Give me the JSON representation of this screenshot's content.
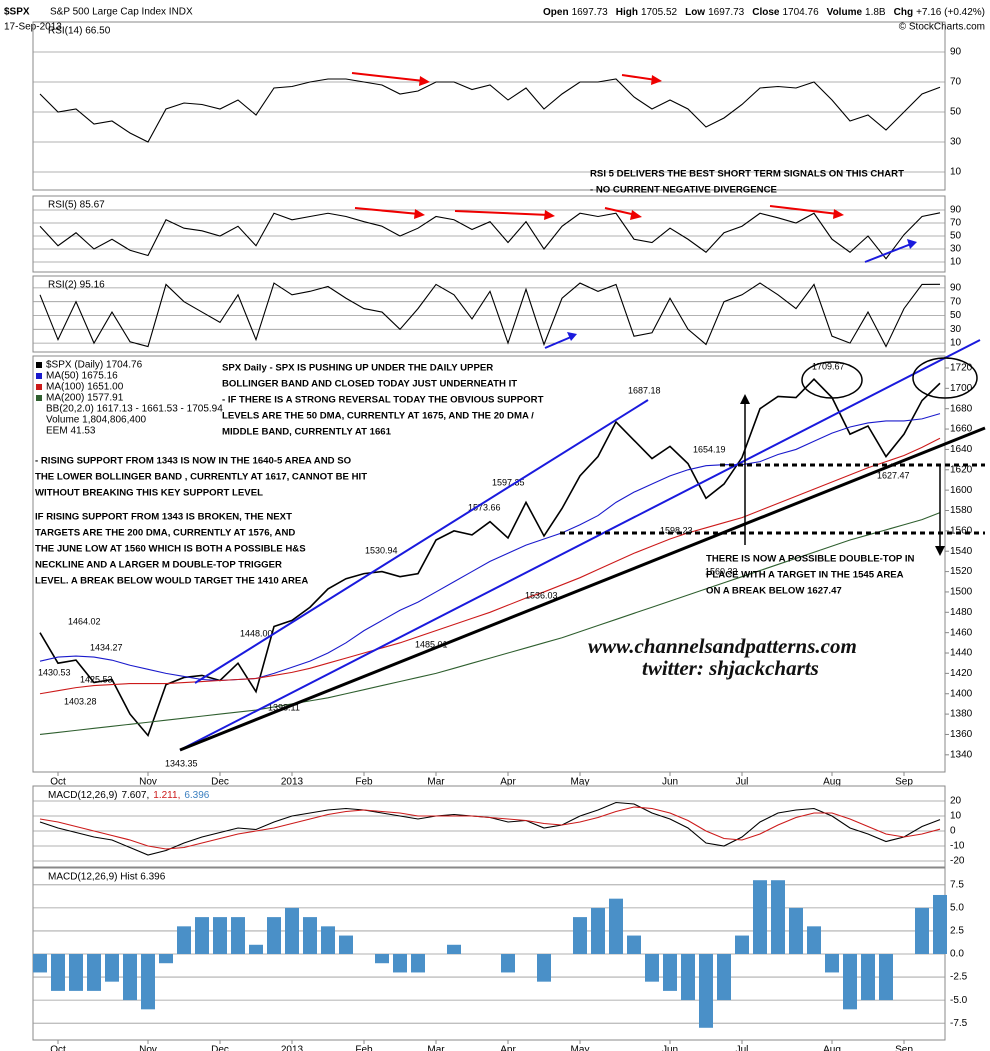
{
  "header": {
    "symbol": "$SPX",
    "name": "S&P 500 Large Cap Index INDX",
    "date": "17-Sep-2013",
    "quote": [
      {
        "label": "Open",
        "value": "1697.73"
      },
      {
        "label": "High",
        "value": "1705.52"
      },
      {
        "label": "Low",
        "value": "1697.73"
      },
      {
        "label": "Close",
        "value": "1704.76"
      },
      {
        "label": "Volume",
        "value": "1.8B"
      },
      {
        "label": "Chg",
        "value": "+7.16 (+0.42%)"
      }
    ],
    "credit": "© StockCharts.com"
  },
  "notes": [
    [
      "RSI 5 DELIVERS THE BEST SHORT TERM SIGNALS ON THIS CHART",
      "- NO CURRENT NEGATIVE DIVERGENCE"
    ],
    [
      "SPX Daily - SPX IS PUSHING UP UNDER THE DAILY UPPER",
      "BOLLINGER BAND AND CLOSED TODAY JUST UNDERNEATH IT",
      "- IF THERE IS A STRONG REVERSAL TODAY THE OBVIOUS SUPPORT",
      "LEVELS ARE THE 50 DMA, CURRENTLY AT 1675, AND THE 20 DMA /",
      "MIDDLE BAND, CURRENTLY AT 1661"
    ],
    [
      "- RISING SUPPORT FROM 1343 IS NOW IN THE 1640-5 AREA AND SO",
      "THE LOWER BOLLINGER BAND , CURRENTLY AT 1617, CANNOT BE HIT",
      "WITHOUT BREAKING THIS KEY SUPPORT LEVEL"
    ],
    [
      "IF RISING SUPPORT FROM 1343 IS BROKEN, THE NEXT",
      "TARGETS ARE THE 200 DMA, CURRENTLY AT 1576, AND",
      "THE JUNE LOW AT 1560 WHICH IS BOTH A POSSIBLE H&S",
      "NECKLINE AND A LARGER M DOUBLE-TOP TRIGGER",
      "LEVEL. A BREAK BELOW WOULD TARGET THE 1410 AREA"
    ],
    [
      "THERE IS NOW A POSSIBLE DOUBLE-TOP IN",
      "PLACE WITH A TARGET IN THE 1545 AREA",
      "ON A BREAK BELOW 1627.47"
    ]
  ],
  "watermark": [
    "www.channelsandpatterns.com",
    "twitter: shjackcharts"
  ],
  "chart_data": [
    {
      "type": "line",
      "title": "RSI(14) 66.50",
      "ylim": [
        0,
        100
      ],
      "yticks": [
        10,
        30,
        50,
        70,
        90
      ],
      "grid": true,
      "series": [
        {
          "name": "RSI(14)",
          "color": "#000000",
          "values": [
            62,
            50,
            52,
            42,
            44,
            36,
            30,
            52,
            56,
            55,
            52,
            58,
            48,
            66,
            67,
            70,
            72,
            72,
            70,
            68,
            62,
            64,
            70,
            70,
            65,
            68,
            58,
            66,
            52,
            62,
            70,
            70,
            72,
            60,
            52,
            58,
            52,
            40,
            46,
            55,
            66,
            67,
            66,
            70,
            58,
            44,
            48,
            38,
            50,
            62,
            66.5
          ]
        }
      ]
    },
    {
      "type": "line",
      "title": "RSI(5) 85.67",
      "ylim": [
        0,
        100
      ],
      "yticks": [
        10,
        30,
        50,
        70,
        90
      ],
      "grid": true,
      "series": [
        {
          "name": "RSI(5)",
          "color": "#000000",
          "values": [
            65,
            35,
            55,
            30,
            45,
            28,
            20,
            75,
            62,
            58,
            50,
            65,
            35,
            85,
            75,
            80,
            85,
            80,
            72,
            65,
            50,
            62,
            80,
            75,
            60,
            72,
            40,
            72,
            30,
            65,
            85,
            80,
            85,
            45,
            40,
            62,
            45,
            25,
            55,
            65,
            85,
            78,
            70,
            85,
            45,
            25,
            50,
            15,
            52,
            80,
            85.67
          ]
        }
      ]
    },
    {
      "type": "line",
      "title": "RSI(2) 95.16",
      "ylim": [
        0,
        100
      ],
      "yticks": [
        10,
        30,
        50,
        70,
        90
      ],
      "grid": true,
      "series": [
        {
          "name": "RSI(2)",
          "color": "#000000",
          "values": [
            80,
            15,
            70,
            10,
            55,
            12,
            5,
            95,
            70,
            55,
            40,
            80,
            15,
            97,
            80,
            85,
            92,
            75,
            60,
            55,
            30,
            60,
            95,
            80,
            45,
            85,
            10,
            88,
            8,
            75,
            97,
            85,
            95,
            20,
            25,
            75,
            30,
            8,
            70,
            80,
            97,
            80,
            60,
            95,
            20,
            10,
            55,
            5,
            60,
            95,
            95.16
          ]
        }
      ]
    },
    {
      "type": "line",
      "ylim": [
        1330,
        1730
      ],
      "yticks": [
        1340,
        1360,
        1380,
        1400,
        1420,
        1440,
        1460,
        1480,
        1500,
        1520,
        1540,
        1560,
        1580,
        1600,
        1620,
        1640,
        1660,
        1680,
        1700,
        1720
      ],
      "grid": false,
      "categories": [
        null,
        "Oct",
        null,
        null,
        null,
        null,
        "Nov",
        null,
        null,
        null,
        "Dec",
        null,
        null,
        null,
        "2013",
        null,
        null,
        null,
        "Feb",
        null,
        null,
        null,
        "Mar",
        null,
        null,
        null,
        "Apr",
        null,
        null,
        null,
        "May",
        null,
        null,
        null,
        null,
        "Jun",
        null,
        null,
        null,
        "Jul",
        null,
        null,
        null,
        null,
        "Aug",
        null,
        null,
        null,
        "Sep",
        null,
        null
      ],
      "series": [
        {
          "name": "$SPX (Daily) 1704.76",
          "color": "#000000",
          "values": [
            1460,
            1430,
            1433,
            1411,
            1414,
            1380,
            1359,
            1409,
            1416,
            1418,
            1413,
            1430,
            1402,
            1466,
            1472,
            1485,
            1503,
            1513,
            1518,
            1520,
            1515,
            1518,
            1551,
            1560,
            1556,
            1569,
            1553,
            1588,
            1555,
            1582,
            1614,
            1633,
            1667,
            1649,
            1631,
            1643,
            1626,
            1592,
            1606,
            1632,
            1680,
            1692,
            1691,
            1709,
            1691,
            1655,
            1663,
            1633,
            1655,
            1688,
            1705
          ]
        },
        {
          "name": "MA(50) 1675.16",
          "color": "#1a1acc",
          "values": [
            1432,
            1436,
            1437,
            1436,
            1433,
            1428,
            1424,
            1420,
            1417,
            1414,
            1413,
            1414,
            1415,
            1420,
            1426,
            1432,
            1440,
            1450,
            1462,
            1472,
            1482,
            1490,
            1500,
            1510,
            1520,
            1530,
            1538,
            1546,
            1552,
            1558,
            1566,
            1575,
            1588,
            1598,
            1606,
            1614,
            1620,
            1624,
            1625,
            1625,
            1628,
            1635,
            1640,
            1648,
            1656,
            1662,
            1666,
            1668,
            1668,
            1670,
            1675.16
          ]
        },
        {
          "name": "MA(100) 1651.00",
          "color": "#cc1a1a",
          "values": [
            1400,
            1403,
            1406,
            1408,
            1409,
            1410,
            1410,
            1410,
            1411,
            1412,
            1413,
            1414,
            1415,
            1418,
            1421,
            1425,
            1430,
            1435,
            1440,
            1445,
            1450,
            1456,
            1462,
            1468,
            1474,
            1480,
            1487,
            1494,
            1500,
            1507,
            1514,
            1522,
            1530,
            1538,
            1545,
            1552,
            1558,
            1563,
            1568,
            1573,
            1580,
            1587,
            1594,
            1601,
            1608,
            1615,
            1622,
            1628,
            1634,
            1642,
            1651
          ]
        },
        {
          "name": "MA(200) 1577.91",
          "color": "#2f5f2f",
          "values": [
            1360,
            1362,
            1364,
            1366,
            1368,
            1370,
            1372,
            1374,
            1376,
            1378,
            1380,
            1382,
            1384,
            1387,
            1390,
            1393,
            1396,
            1400,
            1404,
            1408,
            1412,
            1416,
            1420,
            1425,
            1430,
            1435,
            1440,
            1445,
            1450,
            1455,
            1461,
            1467,
            1473,
            1479,
            1485,
            1491,
            1497,
            1503,
            1509,
            1515,
            1521,
            1527,
            1533,
            1539,
            1545,
            1551,
            1556,
            1561,
            1566,
            1571,
            1577.91
          ]
        }
      ],
      "legend_extra": [
        "BB(20,2.0) 1617.13 - 1661.53 - 1705.94",
        "Volume 1,804,806,400",
        "EEM 41.53"
      ],
      "annotations": [
        "1464.02",
        "1434.27",
        "1430.53",
        "1425.53",
        "1403.28",
        "1343.35",
        "1448.00",
        "1398.11",
        "1530.94",
        "1485.01",
        "1573.66",
        "1597.35",
        "1536.03",
        "1598.23",
        "1560.33",
        "1654.19",
        "1687.18",
        "1709.67",
        "1627.47"
      ]
    },
    {
      "type": "line",
      "title_parts": [
        {
          "text": "MACD(12,26,9)",
          "color": "#000000"
        },
        {
          "text": "7.607,",
          "color": "#000000"
        },
        {
          "text": "1.211,",
          "color": "#cc1a1a"
        },
        {
          "text": "6.396",
          "color": "#3a7fc0"
        }
      ],
      "ylim": [
        -23,
        23
      ],
      "yticks": [
        20,
        10,
        0,
        -10,
        -20
      ],
      "grid": true,
      "series": [
        {
          "name": "MACD",
          "color": "#000000",
          "values": [
            6,
            2,
            -1,
            -4,
            -6,
            -11,
            -16,
            -13,
            -8,
            -4,
            -1,
            2,
            1,
            6,
            10,
            12,
            14,
            15,
            14,
            12,
            10,
            8,
            10,
            11,
            10,
            9,
            6,
            7,
            2,
            4,
            10,
            14,
            19,
            18,
            12,
            8,
            2,
            -8,
            -10,
            -4,
            6,
            12,
            14,
            15,
            10,
            2,
            -2,
            -7,
            -4,
            3,
            7.6
          ]
        },
        {
          "name": "Signal",
          "color": "#cc1a1a",
          "values": [
            8,
            6,
            3,
            0,
            -3,
            -6,
            -10,
            -12,
            -11,
            -8,
            -5,
            -2,
            0,
            2,
            5,
            8,
            11,
            13,
            14,
            13,
            12,
            10,
            10,
            10,
            10,
            9,
            8,
            7,
            5,
            4,
            6,
            9,
            13,
            16,
            15,
            12,
            7,
            0,
            -5,
            -6,
            -2,
            4,
            9,
            12,
            12,
            8,
            3,
            -2,
            -4,
            -2,
            1.2
          ]
        }
      ]
    },
    {
      "type": "bar",
      "title": "MACD(12,26,9) Hist 6.396",
      "ylim": [
        -9,
        9
      ],
      "yticks": [
        7.5,
        {
          "value": 5,
          "label": "5.0"
        },
        2.5,
        {
          "value": 0,
          "label": "0.0"
        },
        -2.5,
        {
          "value": -5,
          "label": "-5.0"
        },
        -7.5
      ],
      "grid": true,
      "categories": [
        null,
        "Oct",
        null,
        null,
        null,
        null,
        "Nov",
        null,
        null,
        null,
        "Dec",
        null,
        null,
        null,
        "2013",
        null,
        null,
        null,
        "Feb",
        null,
        null,
        null,
        "Mar",
        null,
        null,
        null,
        "Apr",
        null,
        null,
        null,
        "May",
        null,
        null,
        null,
        null,
        "Jun",
        null,
        null,
        null,
        "Jul",
        null,
        null,
        null,
        null,
        "Aug",
        null,
        null,
        null,
        "Sep",
        null,
        null
      ],
      "color": "#4a90c8",
      "values": [
        -2,
        -4,
        -4,
        -4,
        -3,
        -5,
        -6,
        -1,
        3,
        4,
        4,
        4,
        1,
        4,
        5,
        4,
        3,
        2,
        0,
        -1,
        -2,
        -2,
        0,
        1,
        0,
        0,
        -2,
        0,
        -3,
        0,
        4,
        5,
        6,
        2,
        -3,
        -4,
        -5,
        -8,
        -5,
        2,
        8,
        8,
        5,
        3,
        -2,
        -6,
        -5,
        -5,
        0,
        5,
        6.4
      ]
    }
  ]
}
